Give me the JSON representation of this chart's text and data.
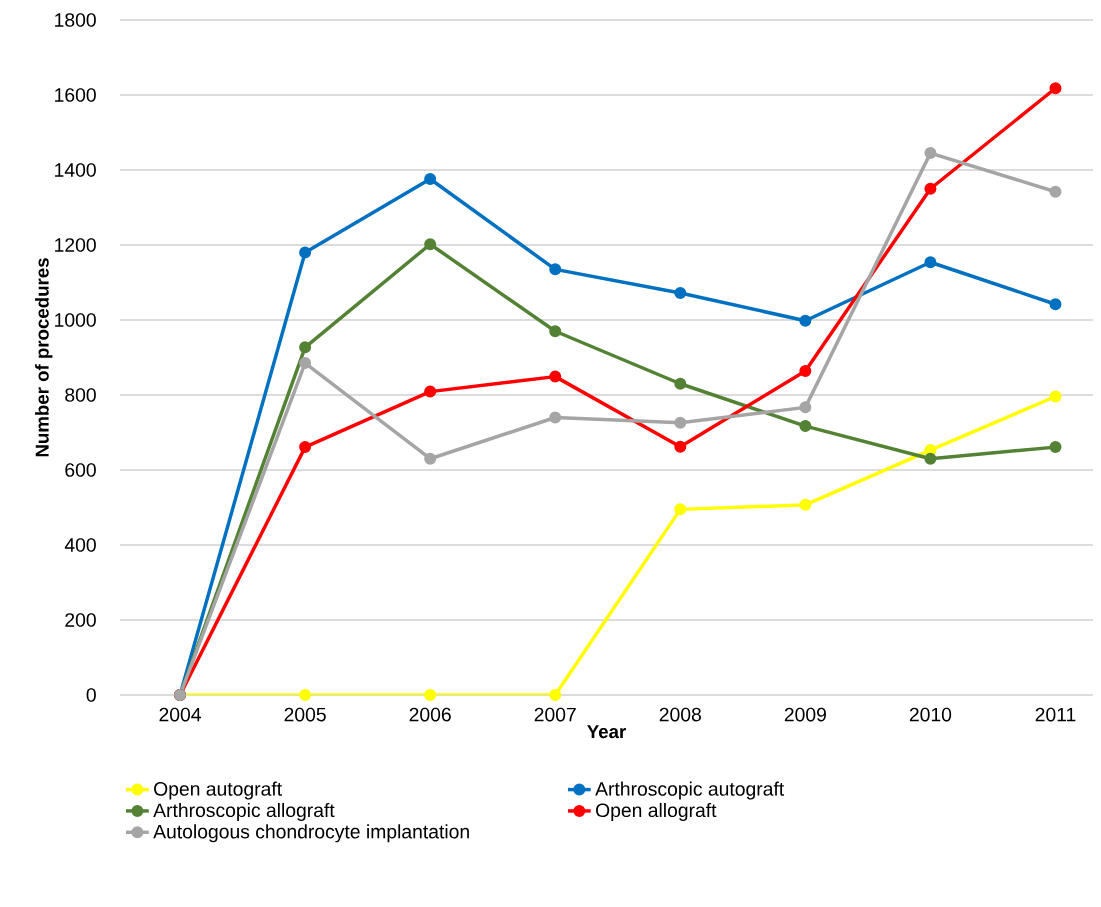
{
  "chart_data": {
    "type": "line",
    "xlabel": "Year",
    "ylabel": "Number of procedures",
    "categories": [
      "2004",
      "2005",
      "2006",
      "2007",
      "2008",
      "2009",
      "2010",
      "2011"
    ],
    "series": [
      {
        "name": "Open autograft",
        "color": "#ffff00",
        "values": [
          0,
          0,
          0,
          0,
          495,
          507,
          653,
          796
        ]
      },
      {
        "name": "Arthroscopic autograft",
        "color": "#0070c0",
        "values": [
          0,
          1180,
          1376,
          1135,
          1072,
          998,
          1154,
          1042
        ]
      },
      {
        "name": "Arthroscopic allograft",
        "color": "#548235",
        "values": [
          0,
          927,
          1202,
          970,
          830,
          717,
          630,
          661
        ]
      },
      {
        "name": "Open allograft",
        "color": "#ff0000",
        "values": [
          0,
          661,
          809,
          849,
          662,
          864,
          1350,
          1618
        ]
      },
      {
        "name": "Autologous chondrocyte implantation",
        "color": "#a5a5a5",
        "values": [
          0,
          885,
          630,
          740,
          726,
          767,
          1445,
          1342
        ]
      }
    ],
    "ylim": [
      0,
      1800
    ],
    "yticks": [
      0,
      200,
      400,
      600,
      800,
      1000,
      1200,
      1400,
      1600,
      1800
    ],
    "grid": "y",
    "legend": "bottom",
    "marker": "circle",
    "line_style": "solid"
  }
}
